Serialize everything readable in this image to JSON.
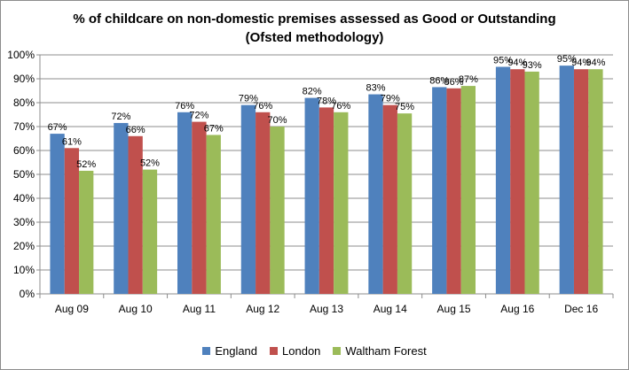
{
  "chart_data": {
    "type": "bar",
    "title_lines": [
      "% of childcare on non-domestic premises assessed as Good or Outstanding",
      "(Ofsted methodology)"
    ],
    "xlabel": "",
    "ylabel": "",
    "ylim": [
      0,
      100
    ],
    "y_ticks": [
      "0%",
      "10%",
      "20%",
      "30%",
      "40%",
      "50%",
      "60%",
      "70%",
      "80%",
      "90%",
      "100%"
    ],
    "grid": true,
    "legend_position": "bottom",
    "categories": [
      "Aug 09",
      "Aug 10",
      "Aug 11",
      "Aug 12",
      "Aug 13",
      "Aug 14",
      "Aug 15",
      "Aug 16",
      "Dec 16"
    ],
    "series": [
      {
        "name": "England",
        "color": "#4f81bd",
        "values": [
          67,
          71.5,
          76,
          79,
          82,
          83.5,
          86.5,
          95,
          95.5
        ],
        "labels": [
          "67%",
          "72%",
          "76%",
          "79%",
          "82%",
          "83%",
          "86%",
          "95%",
          "95%"
        ]
      },
      {
        "name": "London",
        "color": "#c0504d",
        "values": [
          61,
          66,
          72,
          76,
          78,
          79,
          86,
          94,
          94
        ],
        "labels": [
          "61%",
          "66%",
          "72%",
          "76%",
          "78%",
          "79%",
          "86%",
          "94%",
          "94%"
        ]
      },
      {
        "name": "Waltham Forest",
        "color": "#9bbb59",
        "values": [
          51.5,
          52,
          66.5,
          70,
          76,
          75.5,
          87,
          93,
          94
        ],
        "labels": [
          "52%",
          "52%",
          "67%",
          "70%",
          "76%",
          "75%",
          "87%",
          "93%",
          "94%"
        ]
      }
    ]
  }
}
